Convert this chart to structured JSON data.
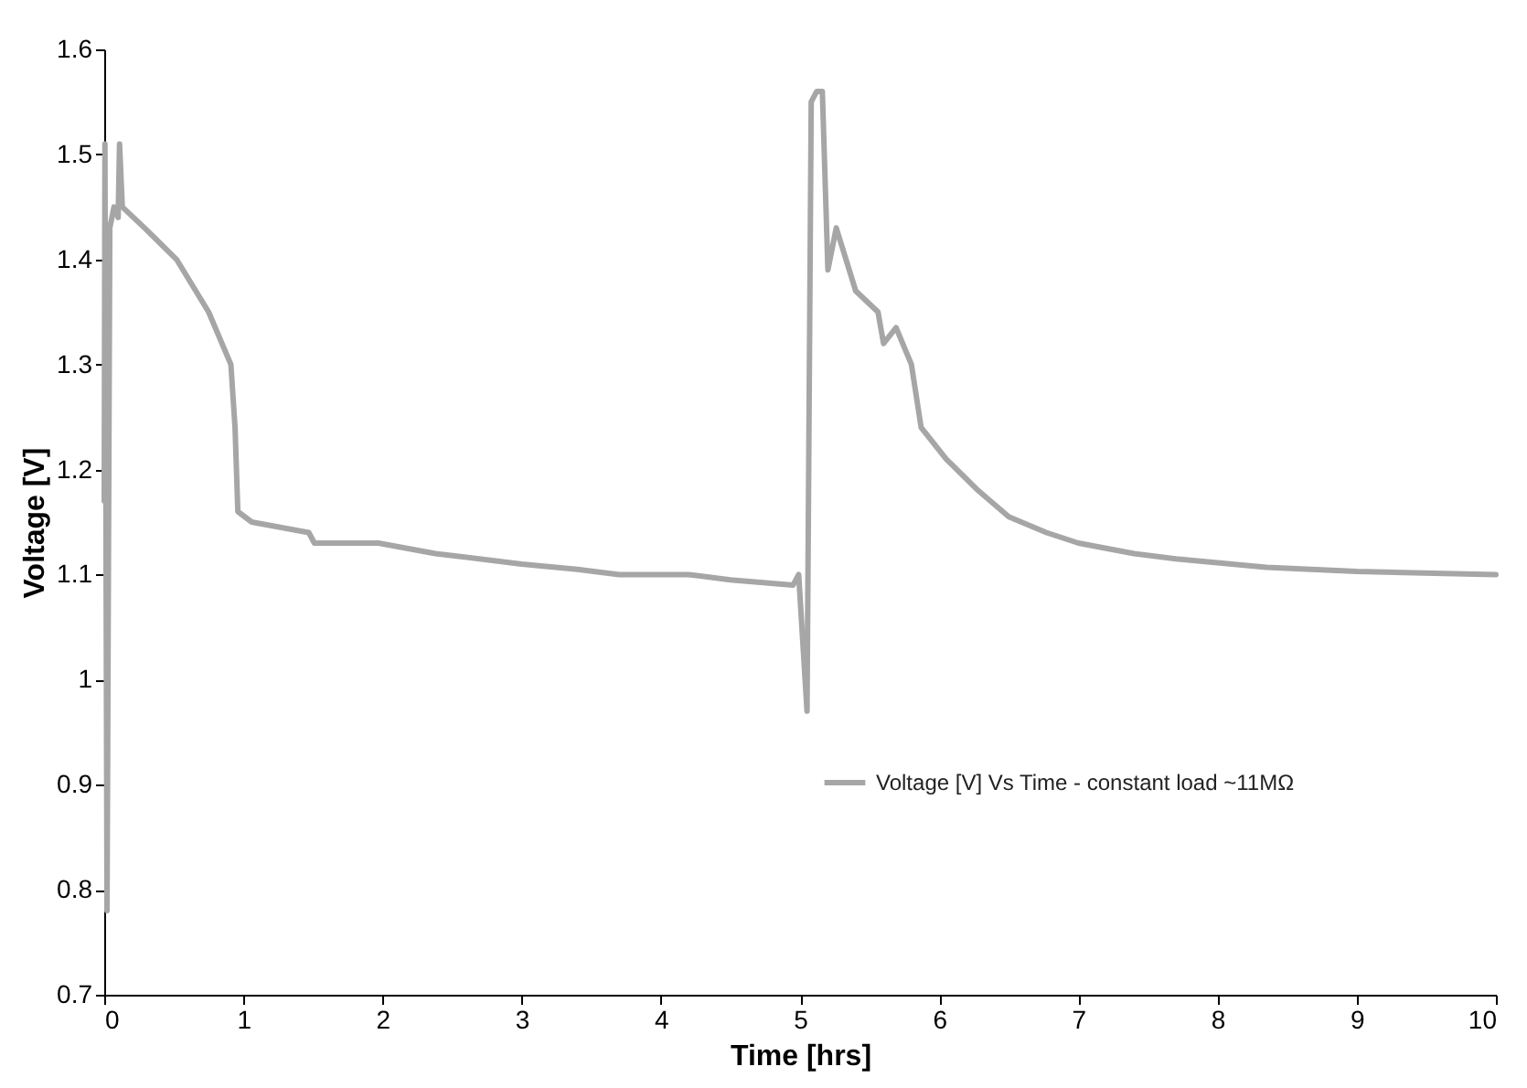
{
  "chart_data": {
    "type": "line",
    "xlabel": "Time [hrs]",
    "ylabel": "Voltage [V]",
    "xlim": [
      0,
      10
    ],
    "xticks": [
      0,
      1,
      2,
      3,
      4,
      5,
      6,
      7,
      8,
      9,
      10
    ],
    "ylim": [
      0.7,
      1.6
    ],
    "yticks": [
      0.7,
      0.8,
      0.9,
      1,
      1.1,
      1.2,
      1.3,
      1.4,
      1.5,
      1.6
    ],
    "grid": false,
    "legend": "bottom right",
    "marker": "none",
    "line_style": "solid",
    "series": [
      {
        "name": "Voltage [V] Vs Time - constant load ~11MΩ",
        "color": "#a6a6a6",
        "x": [
          0,
          0.005,
          0.02,
          0.04,
          0.07,
          0.1,
          0.11,
          0.13,
          0.29,
          0.52,
          0.75,
          0.91,
          0.94,
          0.96,
          1.06,
          1.47,
          1.51,
          1.97,
          2.38,
          3.0,
          3.4,
          3.7,
          4.2,
          4.5,
          4.95,
          4.99,
          5.05,
          5.08,
          5.12,
          5.16,
          5.2,
          5.26,
          5.4,
          5.56,
          5.6,
          5.69,
          5.8,
          5.87,
          6.05,
          6.28,
          6.5,
          6.77,
          7.0,
          7.4,
          7.7,
          8.35,
          9.0,
          10.0
        ],
        "values": [
          1.17,
          1.51,
          0.78,
          1.43,
          1.45,
          1.44,
          1.51,
          1.45,
          1.43,
          1.4,
          1.35,
          1.3,
          1.24,
          1.16,
          1.15,
          1.14,
          1.13,
          1.13,
          1.12,
          1.11,
          1.105,
          1.1,
          1.1,
          1.095,
          1.09,
          1.1,
          0.97,
          1.55,
          1.56,
          1.56,
          1.39,
          1.43,
          1.37,
          1.35,
          1.32,
          1.335,
          1.3,
          1.24,
          1.21,
          1.18,
          1.155,
          1.14,
          1.13,
          1.12,
          1.115,
          1.107,
          1.103,
          1.1
        ]
      }
    ]
  }
}
